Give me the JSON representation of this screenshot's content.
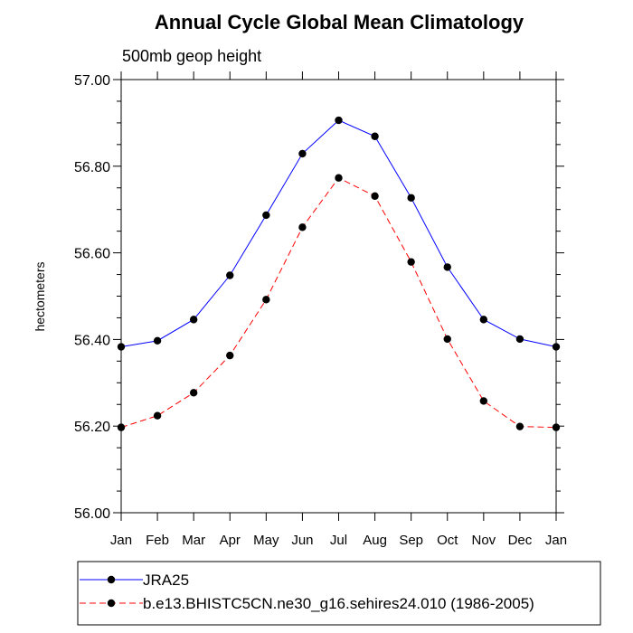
{
  "chart_data": {
    "type": "line",
    "title": "Annual Cycle Global Mean Climatology",
    "subtitle": "500mb geop height",
    "ylabel": "hectometers",
    "xlabel": "",
    "categories": [
      "Jan",
      "Feb",
      "Mar",
      "Apr",
      "May",
      "Jun",
      "Jul",
      "Aug",
      "Sep",
      "Oct",
      "Nov",
      "Dec",
      "Jan"
    ],
    "ylim": [
      56.0,
      57.0
    ],
    "yticks": [
      "56.00",
      "56.20",
      "56.40",
      "56.60",
      "56.80",
      "57.00"
    ],
    "grid": false,
    "legend_position": "bottom",
    "series": [
      {
        "name": "JRA25",
        "color": "#0000ff",
        "line_style": "solid",
        "marker": "filled-circle",
        "values": [
          56.383,
          56.397,
          56.446,
          56.548,
          56.687,
          56.829,
          56.906,
          56.869,
          56.727,
          56.567,
          56.446,
          56.401,
          56.383
        ]
      },
      {
        "name": "b.e13.BHISTC5CN.ne30_g16.sehires24.010 (1986-2005)",
        "color": "#ff0000",
        "line_style": "dashed",
        "marker": "filled-circle",
        "values": [
          56.197,
          56.224,
          56.277,
          56.363,
          56.492,
          56.659,
          56.773,
          56.731,
          56.579,
          56.401,
          56.258,
          56.199,
          56.197
        ]
      }
    ]
  }
}
